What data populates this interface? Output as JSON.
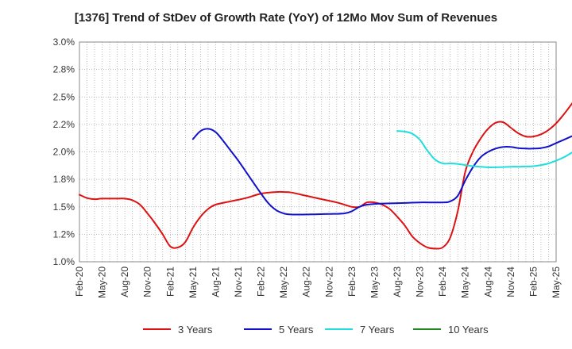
{
  "chart_data": {
    "type": "line",
    "title": "[1376]  Trend of StDev of Growth Rate (YoY) of 12Mo Mov Sum of Revenues",
    "xlabel": "",
    "ylabel": "",
    "ylim": [
      1.0,
      3.0
    ],
    "y_ticks": [
      1.0,
      1.25,
      1.5,
      1.75,
      2.0,
      2.25,
      2.5,
      2.75,
      3.0
    ],
    "y_tick_labels": [
      "1.0%",
      "1.2%",
      "1.5%",
      "1.8%",
      "2.0%",
      "2.2%",
      "2.5%",
      "2.8%",
      "3.0%"
    ],
    "x_tick_labels": [
      "Feb-20",
      "May-20",
      "Aug-20",
      "Nov-20",
      "Feb-21",
      "May-21",
      "Aug-21",
      "Nov-21",
      "Feb-22",
      "May-22",
      "Aug-22",
      "Nov-22",
      "Feb-23",
      "May-23",
      "Aug-23",
      "Nov-23",
      "Feb-24",
      "May-24",
      "Aug-24",
      "Nov-24",
      "Feb-25",
      "May-25"
    ],
    "grid": true,
    "legend_position": "bottom",
    "series": [
      {
        "name": "3 Years",
        "color": "#dd1111",
        "points": [
          [
            0,
            1.61
          ],
          [
            1,
            1.58
          ],
          [
            2,
            1.57
          ],
          [
            3,
            1.575
          ],
          [
            5,
            1.575
          ],
          [
            6,
            1.575
          ],
          [
            7,
            1.56
          ],
          [
            8,
            1.52
          ],
          [
            9,
            1.44
          ],
          [
            10,
            1.35
          ],
          [
            11,
            1.25
          ],
          [
            12,
            1.14
          ],
          [
            13,
            1.13
          ],
          [
            14,
            1.18
          ],
          [
            15,
            1.31
          ],
          [
            16,
            1.41
          ],
          [
            17,
            1.48
          ],
          [
            18,
            1.52
          ],
          [
            20,
            1.55
          ],
          [
            22,
            1.58
          ],
          [
            24,
            1.62
          ],
          [
            26,
            1.635
          ],
          [
            27,
            1.635
          ],
          [
            28,
            1.63
          ],
          [
            30,
            1.6
          ],
          [
            32,
            1.57
          ],
          [
            34,
            1.54
          ],
          [
            35,
            1.52
          ],
          [
            36,
            1.5
          ],
          [
            37,
            1.5
          ],
          [
            38,
            1.54
          ],
          [
            39,
            1.54
          ],
          [
            40,
            1.52
          ],
          [
            41,
            1.48
          ],
          [
            42,
            1.41
          ],
          [
            43,
            1.33
          ],
          [
            44,
            1.23
          ],
          [
            45,
            1.17
          ],
          [
            46,
            1.13
          ],
          [
            47,
            1.12
          ],
          [
            48,
            1.13
          ],
          [
            49,
            1.22
          ],
          [
            50,
            1.46
          ],
          [
            51,
            1.82
          ],
          [
            52,
            2.0
          ],
          [
            53,
            2.12
          ],
          [
            54,
            2.21
          ],
          [
            55,
            2.265
          ],
          [
            56,
            2.27
          ],
          [
            57,
            2.22
          ],
          [
            58,
            2.17
          ],
          [
            59,
            2.14
          ],
          [
            60,
            2.14
          ],
          [
            61,
            2.16
          ],
          [
            62,
            2.2
          ],
          [
            63,
            2.26
          ],
          [
            64,
            2.34
          ],
          [
            65,
            2.43
          ],
          [
            66,
            2.52
          ]
        ]
      },
      {
        "name": "5 Years",
        "color": "#1111cc",
        "points": [
          [
            15,
            2.116
          ],
          [
            16,
            2.19
          ],
          [
            17,
            2.21
          ],
          [
            18,
            2.18
          ],
          [
            19,
            2.1
          ],
          [
            20,
            2.01
          ],
          [
            21,
            1.92
          ],
          [
            22,
            1.82
          ],
          [
            23,
            1.72
          ],
          [
            24,
            1.62
          ],
          [
            25,
            1.53
          ],
          [
            26,
            1.47
          ],
          [
            27,
            1.44
          ],
          [
            28,
            1.43
          ],
          [
            30,
            1.43
          ],
          [
            31,
            1.432
          ],
          [
            33,
            1.435
          ],
          [
            35,
            1.44
          ],
          [
            36,
            1.46
          ],
          [
            37,
            1.5
          ],
          [
            38,
            1.52
          ],
          [
            40,
            1.53
          ],
          [
            43,
            1.535
          ],
          [
            45,
            1.54
          ],
          [
            48,
            1.54
          ],
          [
            49,
            1.55
          ],
          [
            50,
            1.6
          ],
          [
            51,
            1.74
          ],
          [
            52,
            1.86
          ],
          [
            53,
            1.95
          ],
          [
            54,
            2.0
          ],
          [
            55,
            2.03
          ],
          [
            56,
            2.045
          ],
          [
            57,
            2.045
          ],
          [
            58,
            2.035
          ],
          [
            59,
            2.03
          ],
          [
            60,
            2.03
          ],
          [
            61,
            2.035
          ],
          [
            62,
            2.05
          ],
          [
            63,
            2.08
          ],
          [
            64,
            2.11
          ],
          [
            65,
            2.14
          ],
          [
            66,
            2.17
          ]
        ]
      },
      {
        "name": "7 Years",
        "color": "#22dddd",
        "points": [
          [
            42,
            2.19
          ],
          [
            43,
            2.185
          ],
          [
            44,
            2.165
          ],
          [
            45,
            2.11
          ],
          [
            46,
            2.01
          ],
          [
            47,
            1.93
          ],
          [
            48,
            1.895
          ],
          [
            49,
            1.895
          ],
          [
            50,
            1.89
          ],
          [
            51,
            1.88
          ],
          [
            52,
            1.87
          ],
          [
            53,
            1.865
          ],
          [
            54,
            1.86
          ],
          [
            55,
            1.86
          ],
          [
            56,
            1.862
          ],
          [
            57,
            1.865
          ],
          [
            58,
            1.865
          ],
          [
            59,
            1.867
          ],
          [
            60,
            1.87
          ],
          [
            61,
            1.88
          ],
          [
            62,
            1.895
          ],
          [
            63,
            1.92
          ],
          [
            64,
            1.95
          ],
          [
            65,
            1.99
          ],
          [
            66,
            2.03
          ]
        ]
      },
      {
        "name": "10 Years",
        "color": "#228822",
        "points": []
      }
    ]
  }
}
